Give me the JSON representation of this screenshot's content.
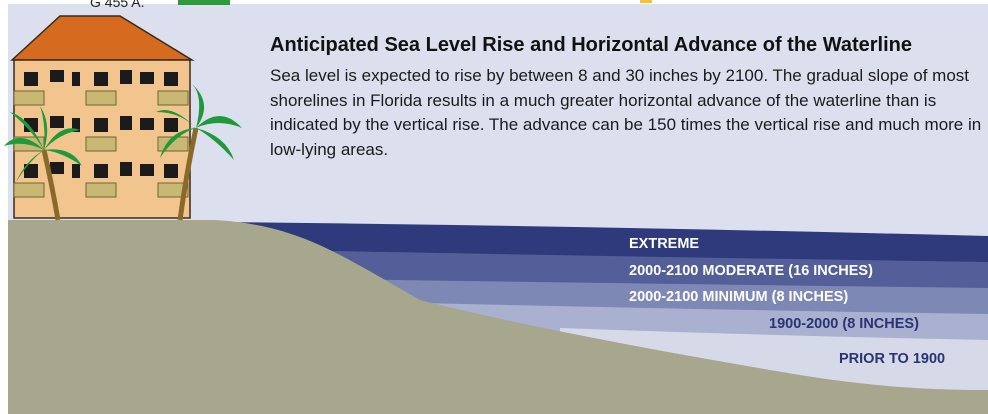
{
  "top_fragment": "G 455 A.",
  "header": {
    "title": "Anticipated Sea Level Rise and Horizontal Advance of the Waterline",
    "description": "Sea level is expected to rise by between 8 and 30 inches by 2100. The gradual slope of most shorelines in Florida results in a much greater horizontal advance of the waterline than is indicated by the vertical rise. The advance can be 150 times the vertical rise and much more in low-lying areas."
  },
  "bands": [
    {
      "label": "EXTREME",
      "color": "#2e3a7c"
    },
    {
      "label": "2000-2100 MODERATE (16 INCHES)",
      "color": "#545f99"
    },
    {
      "label": "2000-2100 MINIMUM (8 INCHES)",
      "color": "#7e88b5"
    },
    {
      "label": "1900-2000 (8 INCHES)",
      "color": "#aab1d0"
    },
    {
      "label": "PRIOR TO 1900",
      "color": "#d6d9e8"
    }
  ],
  "colors": {
    "sky": "#dcdfee",
    "ground": "#a7a78d",
    "roof": "#d66a1e",
    "building": "#f2c58f",
    "palm": "#1f9a3a"
  }
}
